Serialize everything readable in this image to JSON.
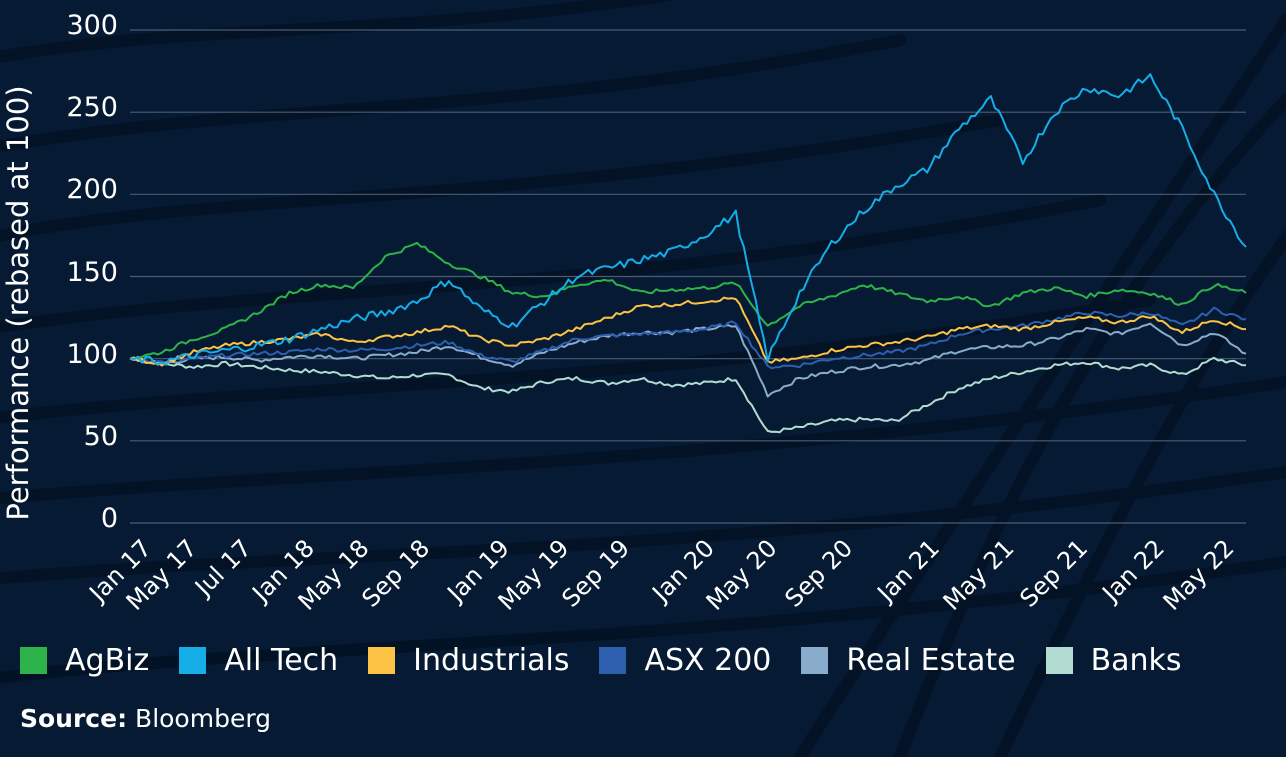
{
  "chart_data": {
    "type": "line",
    "title": "",
    "xlabel": "",
    "ylabel": "Performance (rebased at 100)",
    "ylim": [
      0,
      300
    ],
    "yticks": [
      0,
      50,
      100,
      150,
      200,
      250,
      300
    ],
    "grid": true,
    "legend_position": "bottom",
    "x_tick_labels": [
      "Jan 17",
      "May 17",
      "Jul 17",
      "Jan 18",
      "May 18",
      "Sep 18",
      "Jan 19",
      "May 19",
      "Sep 19",
      "Jan 20",
      "May 20",
      "Sep 20",
      "Jan 21",
      "May 21",
      "Sep 21",
      "Jan 22",
      "May 22"
    ],
    "x": [
      "Jan 17",
      "Mar 17",
      "May 17",
      "Jul 17",
      "Sep 17",
      "Nov 17",
      "Jan 18",
      "Mar 18",
      "May 18",
      "Jul 18",
      "Sep 18",
      "Nov 18",
      "Jan 19",
      "Mar 19",
      "May 19",
      "Jul 19",
      "Sep 19",
      "Nov 19",
      "Jan 20",
      "Feb 20",
      "Mar 20",
      "Apr 20",
      "May 20",
      "Jul 20",
      "Sep 20",
      "Nov 20",
      "Jan 21",
      "Mar 21",
      "May 21",
      "Jul 21",
      "Sep 21",
      "Nov 21",
      "Jan 22",
      "Mar 22",
      "May 22",
      "Jun 22"
    ],
    "series": [
      {
        "name": "AgBiz",
        "color": "#2db34a",
        "values": [
          100,
          104,
          112,
          118,
          128,
          140,
          145,
          143,
          162,
          170,
          158,
          150,
          140,
          138,
          145,
          148,
          140,
          142,
          143,
          146,
          120,
          132,
          138,
          145,
          140,
          135,
          138,
          132,
          140,
          143,
          138,
          142,
          140,
          133,
          145,
          140
        ]
      },
      {
        "name": "All Tech",
        "color": "#15aee8",
        "values": [
          100,
          98,
          102,
          105,
          108,
          112,
          118,
          124,
          128,
          135,
          148,
          130,
          120,
          135,
          150,
          155,
          160,
          165,
          175,
          188,
          100,
          140,
          170,
          190,
          205,
          215,
          240,
          258,
          220,
          250,
          265,
          260,
          272,
          240,
          200,
          168
        ]
      },
      {
        "name": "Industrials",
        "color": "#fdc345",
        "values": [
          100,
          97,
          104,
          108,
          110,
          112,
          115,
          110,
          113,
          116,
          120,
          112,
          108,
          112,
          118,
          125,
          132,
          133,
          135,
          137,
          98,
          100,
          105,
          108,
          110,
          113,
          118,
          120,
          118,
          122,
          125,
          122,
          126,
          116,
          124,
          118
        ]
      },
      {
        "name": "ASX 200",
        "color": "#2d5faf",
        "values": [
          100,
          98,
          100,
          102,
          103,
          104,
          106,
          105,
          106,
          108,
          110,
          102,
          98,
          105,
          112,
          114,
          115,
          116,
          118,
          122,
          95,
          96,
          100,
          102,
          104,
          108,
          115,
          118,
          120,
          124,
          128,
          126,
          128,
          120,
          130,
          124
        ]
      },
      {
        "name": "Real Estate",
        "color": "#8aaccc",
        "values": [
          100,
          97,
          100,
          101,
          99,
          101,
          102,
          100,
          102,
          104,
          108,
          101,
          96,
          104,
          110,
          114,
          116,
          116,
          118,
          120,
          78,
          88,
          92,
          95,
          96,
          99,
          105,
          107,
          108,
          112,
          118,
          115,
          122,
          108,
          116,
          103
        ]
      },
      {
        "name": "Banks",
        "color": "#b2dcd2",
        "values": [
          100,
          97,
          95,
          97,
          95,
          93,
          92,
          90,
          88,
          90,
          90,
          82,
          80,
          86,
          88,
          85,
          88,
          84,
          85,
          88,
          55,
          58,
          62,
          63,
          62,
          72,
          82,
          88,
          92,
          96,
          98,
          94,
          96,
          90,
          100,
          96
        ]
      }
    ]
  },
  "legend": [
    {
      "label": "AgBiz",
      "color": "#2db34a"
    },
    {
      "label": "All Tech",
      "color": "#15aee8"
    },
    {
      "label": "Industrials",
      "color": "#fdc345"
    },
    {
      "label": "ASX 200",
      "color": "#2d5faf"
    },
    {
      "label": "Real Estate",
      "color": "#8aaccc"
    },
    {
      "label": "Banks",
      "color": "#b2dcd2"
    }
  ],
  "source": {
    "label": "Source:",
    "value": " Bloomberg"
  },
  "colors": {
    "background": "#061a33",
    "gridline": "#4a5d74",
    "text": "#ffffff"
  }
}
